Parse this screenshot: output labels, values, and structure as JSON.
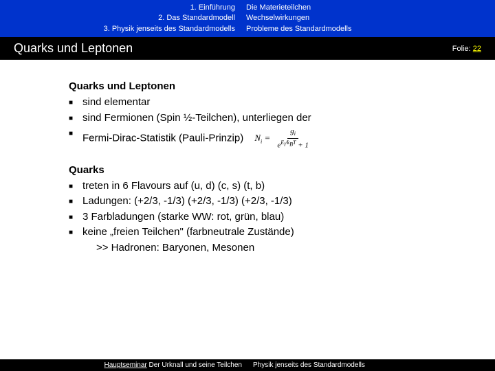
{
  "header": {
    "left": [
      "1. Einführung",
      "2. Das Standardmodell",
      "3. Physik jenseits des Standardmodells"
    ],
    "right": [
      "Die Materieteilchen",
      "Wechselwirkungen",
      "Probleme des Standardmodells"
    ]
  },
  "titleBar": {
    "title": "Quarks und Leptonen",
    "folieLabel": "Folie:",
    "folieNum": "22"
  },
  "content": {
    "section1": {
      "title": "Quarks und Leptonen",
      "items": [
        "sind elementar",
        "sind Fermionen (Spin ½-Teilchen), unterliegen der",
        "Fermi-Dirac-Statistik (Pauli-Prinzip)"
      ]
    },
    "section2": {
      "title": "Quarks",
      "items": [
        "treten in 6 Flavours auf (u, d) (c, s) (t, b)",
        "Ladungen: (+2/3, -1/3) (+2/3, -1/3) (+2/3, -1/3)",
        "3 Farbladungen (starke WW: rot, grün, blau)",
        "keine „freien Teilchen\" (farbneutrale Zustände)"
      ],
      "extra": ">> Hadronen: Baryonen, Mesonen"
    }
  },
  "footer": {
    "leftLabel": "Hauptseminar",
    "leftText": " Der Urknall und seine Teilchen",
    "right": "Physik jenseits des Standardmodells"
  }
}
